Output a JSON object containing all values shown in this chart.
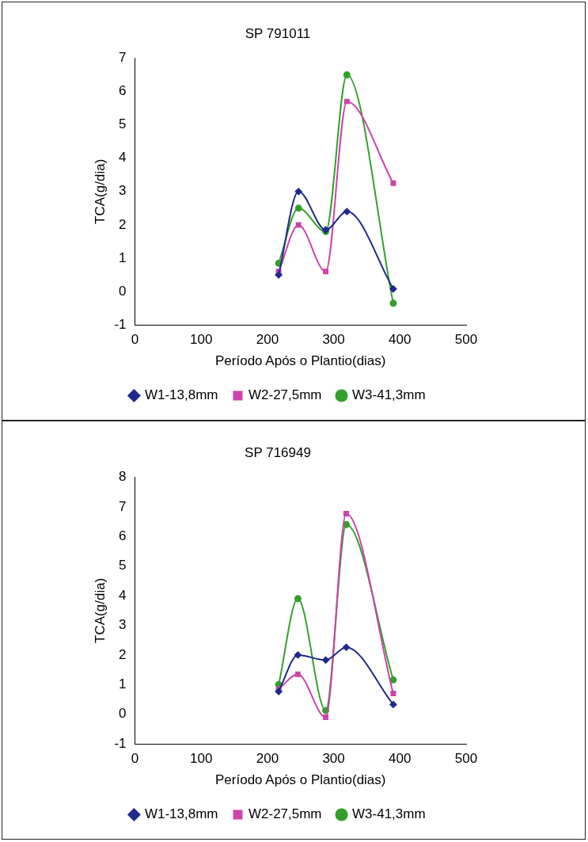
{
  "chart_data": [
    {
      "type": "line",
      "title": "SP 791011",
      "xlabel": "Período Após o Plantio(dias)",
      "ylabel": "TCA(g/dia)",
      "xlim": [
        0,
        500
      ],
      "xticks": [
        0,
        100,
        200,
        300,
        400,
        500
      ],
      "ylim": [
        -1,
        7
      ],
      "yticks": [
        -1,
        0,
        1,
        2,
        3,
        4,
        5,
        6,
        7
      ],
      "grid": false,
      "legend": "bottom",
      "series": [
        {
          "name": "W1-13,8mm",
          "color": "#1f2a8c",
          "marker": "diamond",
          "x": [
            217,
            247,
            288,
            320,
            390
          ],
          "values": [
            0.5,
            3.0,
            1.85,
            2.4,
            0.08
          ]
        },
        {
          "name": "W2-27,5mm",
          "color": "#cc44aa",
          "marker": "square",
          "x": [
            217,
            247,
            288,
            320,
            390
          ],
          "values": [
            0.6,
            2.0,
            0.6,
            5.7,
            3.25
          ]
        },
        {
          "name": "W3-41,3mm",
          "color": "#33a02c",
          "marker": "circle",
          "x": [
            217,
            247,
            288,
            320,
            390
          ],
          "values": [
            0.85,
            2.5,
            1.8,
            6.5,
            -0.35
          ]
        }
      ]
    },
    {
      "type": "line",
      "title": "SP 716949",
      "xlabel": "Período Após o Plantio(dias)",
      "ylabel": "TCA(g/dia)",
      "xlim": [
        0,
        500
      ],
      "xticks": [
        0,
        100,
        200,
        300,
        400,
        500
      ],
      "ylim": [
        -1,
        8
      ],
      "yticks": [
        -1,
        0,
        1,
        2,
        3,
        4,
        5,
        6,
        7,
        8
      ],
      "grid": false,
      "legend": "bottom",
      "series": [
        {
          "name": "W1-13,8mm",
          "color": "#1f2a8c",
          "marker": "diamond",
          "x": [
            217,
            246,
            288,
            319,
            390
          ],
          "values": [
            0.77,
            2.0,
            1.83,
            2.26,
            0.33
          ]
        },
        {
          "name": "W2-27,5mm",
          "color": "#cc44aa",
          "marker": "square",
          "x": [
            217,
            246,
            288,
            319,
            390
          ],
          "values": [
            0.85,
            1.35,
            -0.1,
            6.77,
            0.7
          ]
        },
        {
          "name": "W3-41,3mm",
          "color": "#33a02c",
          "marker": "circle",
          "x": [
            217,
            246,
            288,
            319,
            390
          ],
          "values": [
            1.0,
            3.9,
            0.13,
            6.4,
            1.16
          ]
        }
      ]
    }
  ]
}
